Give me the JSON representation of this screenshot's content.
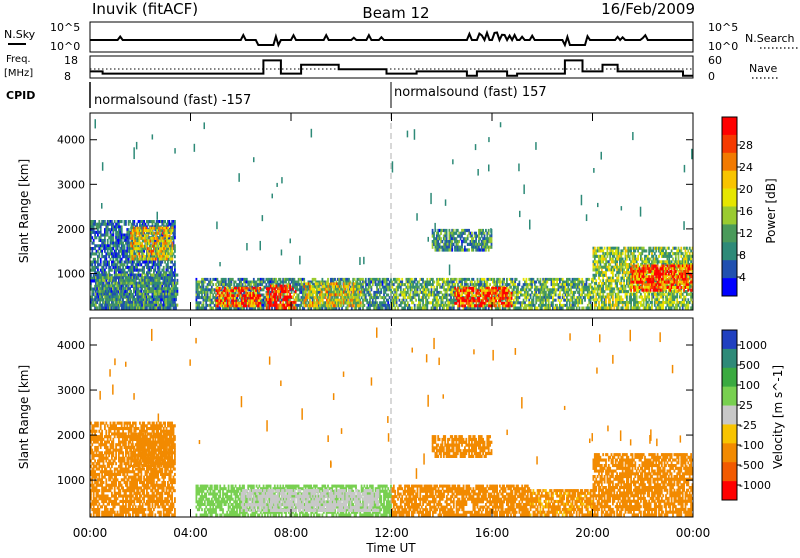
{
  "header": {
    "station": "Inuvik (fitACF)",
    "beam": "Beam 12",
    "date": "16/Feb/2009"
  },
  "top_panels": {
    "nsky_label": "N.Sky",
    "nsearch_label": "N.Search",
    "freq_label_line1": "Freq.",
    "freq_label_line2": "[MHz]",
    "nave_label": "Nave",
    "cpid_label": "CPID",
    "exp_ticks_left": [
      "10^5",
      "10^0"
    ],
    "exp_ticks_right": [
      "10^5",
      "10^0"
    ],
    "freq_ticks": [
      "18",
      "8"
    ],
    "nave_ticks": [
      "60",
      "0"
    ],
    "cpid_segments": [
      {
        "label": "normalsound (fast) -157",
        "start": 0,
        "end": 12
      },
      {
        "label": "normalsound (fast) 157",
        "start": 12,
        "end": 24
      }
    ],
    "freq_series_hours": [
      0,
      0.5,
      0.5,
      6.9,
      6.9,
      7.6,
      7.6,
      8.4,
      8.4,
      9.9,
      9.9,
      11.8,
      11.8,
      13.0,
      13.0,
      15.0,
      15.0,
      15.4,
      15.4,
      16.6,
      16.6,
      17.0,
      17.0,
      18.9,
      18.9,
      19.6,
      19.6,
      20.4,
      20.4,
      21.0,
      21.0,
      23.6,
      23.6,
      24
    ],
    "freq_series_mhz": [
      11,
      11,
      10,
      10,
      16,
      16,
      10,
      10,
      14,
      14,
      12,
      12,
      10,
      10,
      11,
      11,
      9,
      9,
      11,
      11,
      9,
      9,
      10,
      10,
      16,
      16,
      11,
      11,
      14,
      14,
      11,
      11,
      9,
      9
    ]
  },
  "chart_data": [
    {
      "type": "heatmap",
      "name": "power",
      "xlabel": "Time UT",
      "ylabel": "Slant Range [km]",
      "xlim": [
        0,
        24
      ],
      "ylim": [
        180,
        4600
      ],
      "x_ticks": [
        "00:00",
        "04:00",
        "08:00",
        "12:00",
        "16:00",
        "20:00",
        "00:00"
      ],
      "x_tick_values": [
        0,
        4,
        8,
        12,
        16,
        20,
        24
      ],
      "y_ticks": [
        1000,
        2000,
        3000,
        4000
      ],
      "colorbar_label": "Power [dB]",
      "colorbar_ticks": [
        "28",
        "24",
        "20",
        "16",
        "12",
        "8",
        "4"
      ],
      "colorbar_colors": [
        "#ff0000",
        "#f63a00",
        "#f27a00",
        "#f8c400",
        "#e6e600",
        "#9acb30",
        "#4a9a5a",
        "#2e8a78",
        "#2050b0",
        "#0000ff"
      ],
      "regions": [
        {
          "x0": 0.0,
          "x1": 3.4,
          "y0": 200,
          "y1": 2200,
          "v": 8
        },
        {
          "x0": 1.6,
          "x1": 3.3,
          "y0": 1300,
          "y1": 2050,
          "v": 18
        },
        {
          "x0": 0.2,
          "x1": 3.5,
          "y0": 200,
          "y1": 1000,
          "v": 10
        },
        {
          "x0": 4.2,
          "x1": 12.0,
          "y0": 200,
          "y1": 900,
          "v": 10
        },
        {
          "x0": 5.0,
          "x1": 6.8,
          "y0": 250,
          "y1": 700,
          "v": 26
        },
        {
          "x0": 7.0,
          "x1": 8.2,
          "y0": 200,
          "y1": 750,
          "v": 30
        },
        {
          "x0": 8.5,
          "x1": 10.8,
          "y0": 250,
          "y1": 800,
          "v": 18
        },
        {
          "x0": 12.0,
          "x1": 17.5,
          "y0": 200,
          "y1": 900,
          "v": 12
        },
        {
          "x0": 14.5,
          "x1": 16.8,
          "y0": 250,
          "y1": 700,
          "v": 26
        },
        {
          "x0": 13.6,
          "x1": 16.0,
          "y0": 1500,
          "y1": 2000,
          "v": 10
        },
        {
          "x0": 17.5,
          "x1": 20.0,
          "y0": 200,
          "y1": 900,
          "v": 12
        },
        {
          "x0": 20.0,
          "x1": 24.0,
          "y0": 200,
          "y1": 1600,
          "v": 14
        },
        {
          "x0": 21.5,
          "x1": 24.0,
          "y0": 600,
          "y1": 1200,
          "v": 26
        }
      ]
    },
    {
      "type": "heatmap",
      "name": "velocity",
      "xlabel": "Time UT",
      "ylabel": "Slant Range [km]",
      "xlim": [
        0,
        24
      ],
      "ylim": [
        180,
        4600
      ],
      "x_ticks": [
        "00:00",
        "04:00",
        "08:00",
        "12:00",
        "16:00",
        "20:00",
        "00:00"
      ],
      "x_tick_values": [
        0,
        4,
        8,
        12,
        16,
        20,
        24
      ],
      "y_ticks": [
        1000,
        2000,
        3000,
        4000
      ],
      "colorbar_label": "Velocity [m s^-1]",
      "colorbar_ticks": [
        "1000",
        "500",
        "100",
        "25",
        "-25",
        "-100",
        "-500",
        "-1000"
      ],
      "colorbar_colors": [
        "#2040c0",
        "#2e8a78",
        "#3aaa40",
        "#78d050",
        "#c8c8c8",
        "#f8c400",
        "#f28a00",
        "#f25a00",
        "#ff0000"
      ],
      "regions": [
        {
          "x0": 0.0,
          "x1": 3.4,
          "y0": 200,
          "y1": 2300,
          "v": -200
        },
        {
          "x0": 1.6,
          "x1": 3.3,
          "y0": 1300,
          "y1": 2050,
          "v": -300
        },
        {
          "x0": 4.2,
          "x1": 12.0,
          "y0": 200,
          "y1": 900,
          "v": 50
        },
        {
          "x0": 6.0,
          "x1": 11.5,
          "y0": 300,
          "y1": 800,
          "v": 0
        },
        {
          "x0": 12.0,
          "x1": 17.5,
          "y0": 200,
          "y1": 900,
          "v": -200
        },
        {
          "x0": 13.6,
          "x1": 16.0,
          "y0": 1500,
          "y1": 2000,
          "v": -150
        },
        {
          "x0": 17.5,
          "x1": 20.0,
          "y0": 200,
          "y1": 800,
          "v": -120
        },
        {
          "x0": 20.0,
          "x1": 24.0,
          "y0": 200,
          "y1": 1600,
          "v": -180
        }
      ]
    }
  ]
}
